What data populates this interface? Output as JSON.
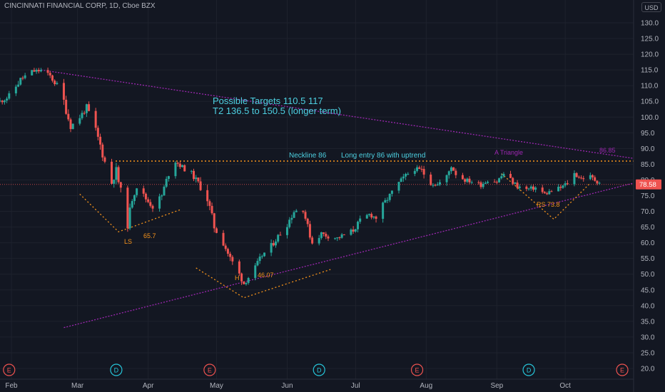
{
  "header": {
    "symbol_title": "CINCINNATI FINANCIAL CORP, 1D, Cboe BZX",
    "currency": "USD"
  },
  "colors": {
    "background": "#131722",
    "grid": "#1e222d",
    "axis_text": "#b2b5be",
    "up_candle": "#26a69a",
    "down_candle": "#ef5350",
    "neckline": "#f7931a",
    "triangle": "#9c27b0",
    "target_text": "#4dd0e1",
    "price_label_bg": "#ef5350",
    "event_earnings": "#ef5350",
    "event_dividend": "#26c6da"
  },
  "chart_data": {
    "type": "candlestick",
    "title": "CINCINNATI FINANCIAL CORP, 1D, Cboe BZX",
    "ylabel": "USD",
    "ylim": [
      18,
      136
    ],
    "y_ticks": [
      20.0,
      25.0,
      30.0,
      35.0,
      40.0,
      45.0,
      50.0,
      55.0,
      60.0,
      65.0,
      70.0,
      75.0,
      80.0,
      85.0,
      90.0,
      95.0,
      100.0,
      105.0,
      110.0,
      115.0,
      120.0,
      125.0,
      130.0
    ],
    "x_range": [
      "2020-01-27",
      "2020-10-31"
    ],
    "x_ticks": [
      {
        "label": "Feb",
        "date": "2020-02-01"
      },
      {
        "label": "Mar",
        "date": "2020-03-01"
      },
      {
        "label": "Apr",
        "date": "2020-04-01"
      },
      {
        "label": "May",
        "date": "2020-05-01"
      },
      {
        "label": "Jun",
        "date": "2020-06-01"
      },
      {
        "label": "Jul",
        "date": "2020-07-01"
      },
      {
        "label": "Aug",
        "date": "2020-08-01"
      },
      {
        "label": "Sep",
        "date": "2020-09-01"
      },
      {
        "label": "Oct",
        "date": "2020-10-01"
      }
    ],
    "grid": true,
    "last_price": 78.58,
    "last_price_label": "78.58",
    "price_path": [
      [
        "2020-01-27",
        105.0
      ],
      [
        "2020-01-31",
        106.5
      ],
      [
        "2020-02-05",
        112.0
      ],
      [
        "2020-02-10",
        114.5
      ],
      [
        "2020-02-14",
        114.8
      ],
      [
        "2020-02-18",
        113.0
      ],
      [
        "2020-02-21",
        110.0
      ],
      [
        "2020-02-24",
        105.0
      ],
      [
        "2020-02-27",
        97.0
      ],
      [
        "2020-03-02",
        100.0
      ],
      [
        "2020-03-05",
        103.0
      ],
      [
        "2020-03-08",
        98.0
      ],
      [
        "2020-03-11",
        91.0
      ],
      [
        "2020-03-14",
        83.0
      ],
      [
        "2020-03-16",
        79.0
      ],
      [
        "2020-03-18",
        83.0
      ],
      [
        "2020-03-20",
        76.0
      ],
      [
        "2020-03-23",
        66.0
      ],
      [
        "2020-03-25",
        74.0
      ],
      [
        "2020-03-27",
        78.0
      ],
      [
        "2020-03-31",
        74.0
      ],
      [
        "2020-04-03",
        71.5
      ],
      [
        "2020-04-07",
        75.0
      ],
      [
        "2020-04-10",
        82.0
      ],
      [
        "2020-04-13",
        86.0
      ],
      [
        "2020-04-16",
        84.0
      ],
      [
        "2020-04-20",
        82.0
      ],
      [
        "2020-04-23",
        79.0
      ],
      [
        "2020-04-27",
        74.0
      ],
      [
        "2020-04-30",
        65.0
      ],
      [
        "2020-05-04",
        60.0
      ],
      [
        "2020-05-07",
        55.0
      ],
      [
        "2020-05-11",
        50.0
      ],
      [
        "2020-05-13",
        47.0
      ],
      [
        "2020-05-15",
        49.0
      ],
      [
        "2020-05-18",
        52.0
      ],
      [
        "2020-05-21",
        56.0
      ],
      [
        "2020-05-25",
        59.0
      ],
      [
        "2020-05-28",
        62.0
      ],
      [
        "2020-06-01",
        66.0
      ],
      [
        "2020-06-04",
        70.0
      ],
      [
        "2020-06-08",
        71.0
      ],
      [
        "2020-06-10",
        65.0
      ],
      [
        "2020-06-12",
        60.0
      ],
      [
        "2020-06-16",
        63.0
      ],
      [
        "2020-06-19",
        62.0
      ],
      [
        "2020-06-23",
        61.5
      ],
      [
        "2020-06-26",
        62.5
      ],
      [
        "2020-06-30",
        64.0
      ],
      [
        "2020-07-03",
        67.0
      ],
      [
        "2020-07-07",
        69.0
      ],
      [
        "2020-07-10",
        68.0
      ],
      [
        "2020-07-14",
        73.0
      ],
      [
        "2020-07-17",
        76.0
      ],
      [
        "2020-07-20",
        79.0
      ],
      [
        "2020-07-24",
        82.0
      ],
      [
        "2020-07-27",
        83.5
      ],
      [
        "2020-07-30",
        83.0
      ],
      [
        "2020-08-03",
        79.0
      ],
      [
        "2020-08-06",
        78.5
      ],
      [
        "2020-08-10",
        81.0
      ],
      [
        "2020-08-12",
        84.5
      ],
      [
        "2020-08-14",
        82.0
      ],
      [
        "2020-08-18",
        80.0
      ],
      [
        "2020-08-21",
        79.5
      ],
      [
        "2020-08-25",
        78.5
      ],
      [
        "2020-08-28",
        80.0
      ],
      [
        "2020-09-01",
        79.5
      ],
      [
        "2020-09-04",
        82.0
      ],
      [
        "2020-09-07",
        80.0
      ],
      [
        "2020-09-10",
        78.0
      ],
      [
        "2020-09-14",
        77.0
      ],
      [
        "2020-09-18",
        77.5
      ],
      [
        "2020-09-22",
        75.5
      ],
      [
        "2020-09-25",
        76.5
      ],
      [
        "2020-09-29",
        77.5
      ],
      [
        "2020-10-02",
        79.0
      ],
      [
        "2020-10-05",
        82.0
      ],
      [
        "2020-10-08",
        80.5
      ],
      [
        "2020-10-12",
        81.0
      ],
      [
        "2020-10-15",
        79.5
      ],
      [
        "2020-10-19",
        78.58
      ]
    ],
    "events": [
      {
        "type": "E",
        "date": "2020-01-31"
      },
      {
        "type": "D",
        "date": "2020-03-18"
      },
      {
        "type": "E",
        "date": "2020-04-28"
      },
      {
        "type": "D",
        "date": "2020-06-15"
      },
      {
        "type": "E",
        "date": "2020-07-28"
      },
      {
        "type": "D",
        "date": "2020-09-15"
      },
      {
        "type": "E",
        "date": "2020-10-26"
      }
    ],
    "annotations": {
      "targets_line1": "Possible Targets   110.5     117",
      "targets_line2": "T2  136.5 to 150.5 (longer term)",
      "neckline_label": "Neckline 86",
      "entry_label": "Long entry 86 with uptrend",
      "triangle_label": "A Triangle",
      "triangle_price": "86.85",
      "ls_label": "LS",
      "ls_price": "65.7",
      "h_label": "H",
      "h_price": "46.07",
      "rs_label": "RS 73.8"
    },
    "drawings": {
      "neckline": {
        "price": 86
      },
      "triangle_upper": [
        [
          "2020-02-14",
          115.0
        ],
        [
          "2020-10-31",
          86.85
        ]
      ],
      "triangle_lower": [
        [
          "2020-02-24",
          33.0
        ],
        [
          "2020-10-31",
          79.0
        ]
      ],
      "ls_curve": [
        [
          "2020-03-02",
          75.5
        ],
        [
          "2020-03-19",
          63.5
        ],
        [
          "2020-04-15",
          70.5
        ]
      ],
      "h_curve": [
        [
          "2020-04-22",
          52.0
        ],
        [
          "2020-05-13",
          42.5
        ],
        [
          "2020-06-20",
          51.5
        ]
      ],
      "rs_curve": [
        [
          "2020-09-03",
          82.0
        ],
        [
          "2020-09-26",
          67.5
        ],
        [
          "2020-10-12",
          79.0
        ]
      ]
    }
  }
}
